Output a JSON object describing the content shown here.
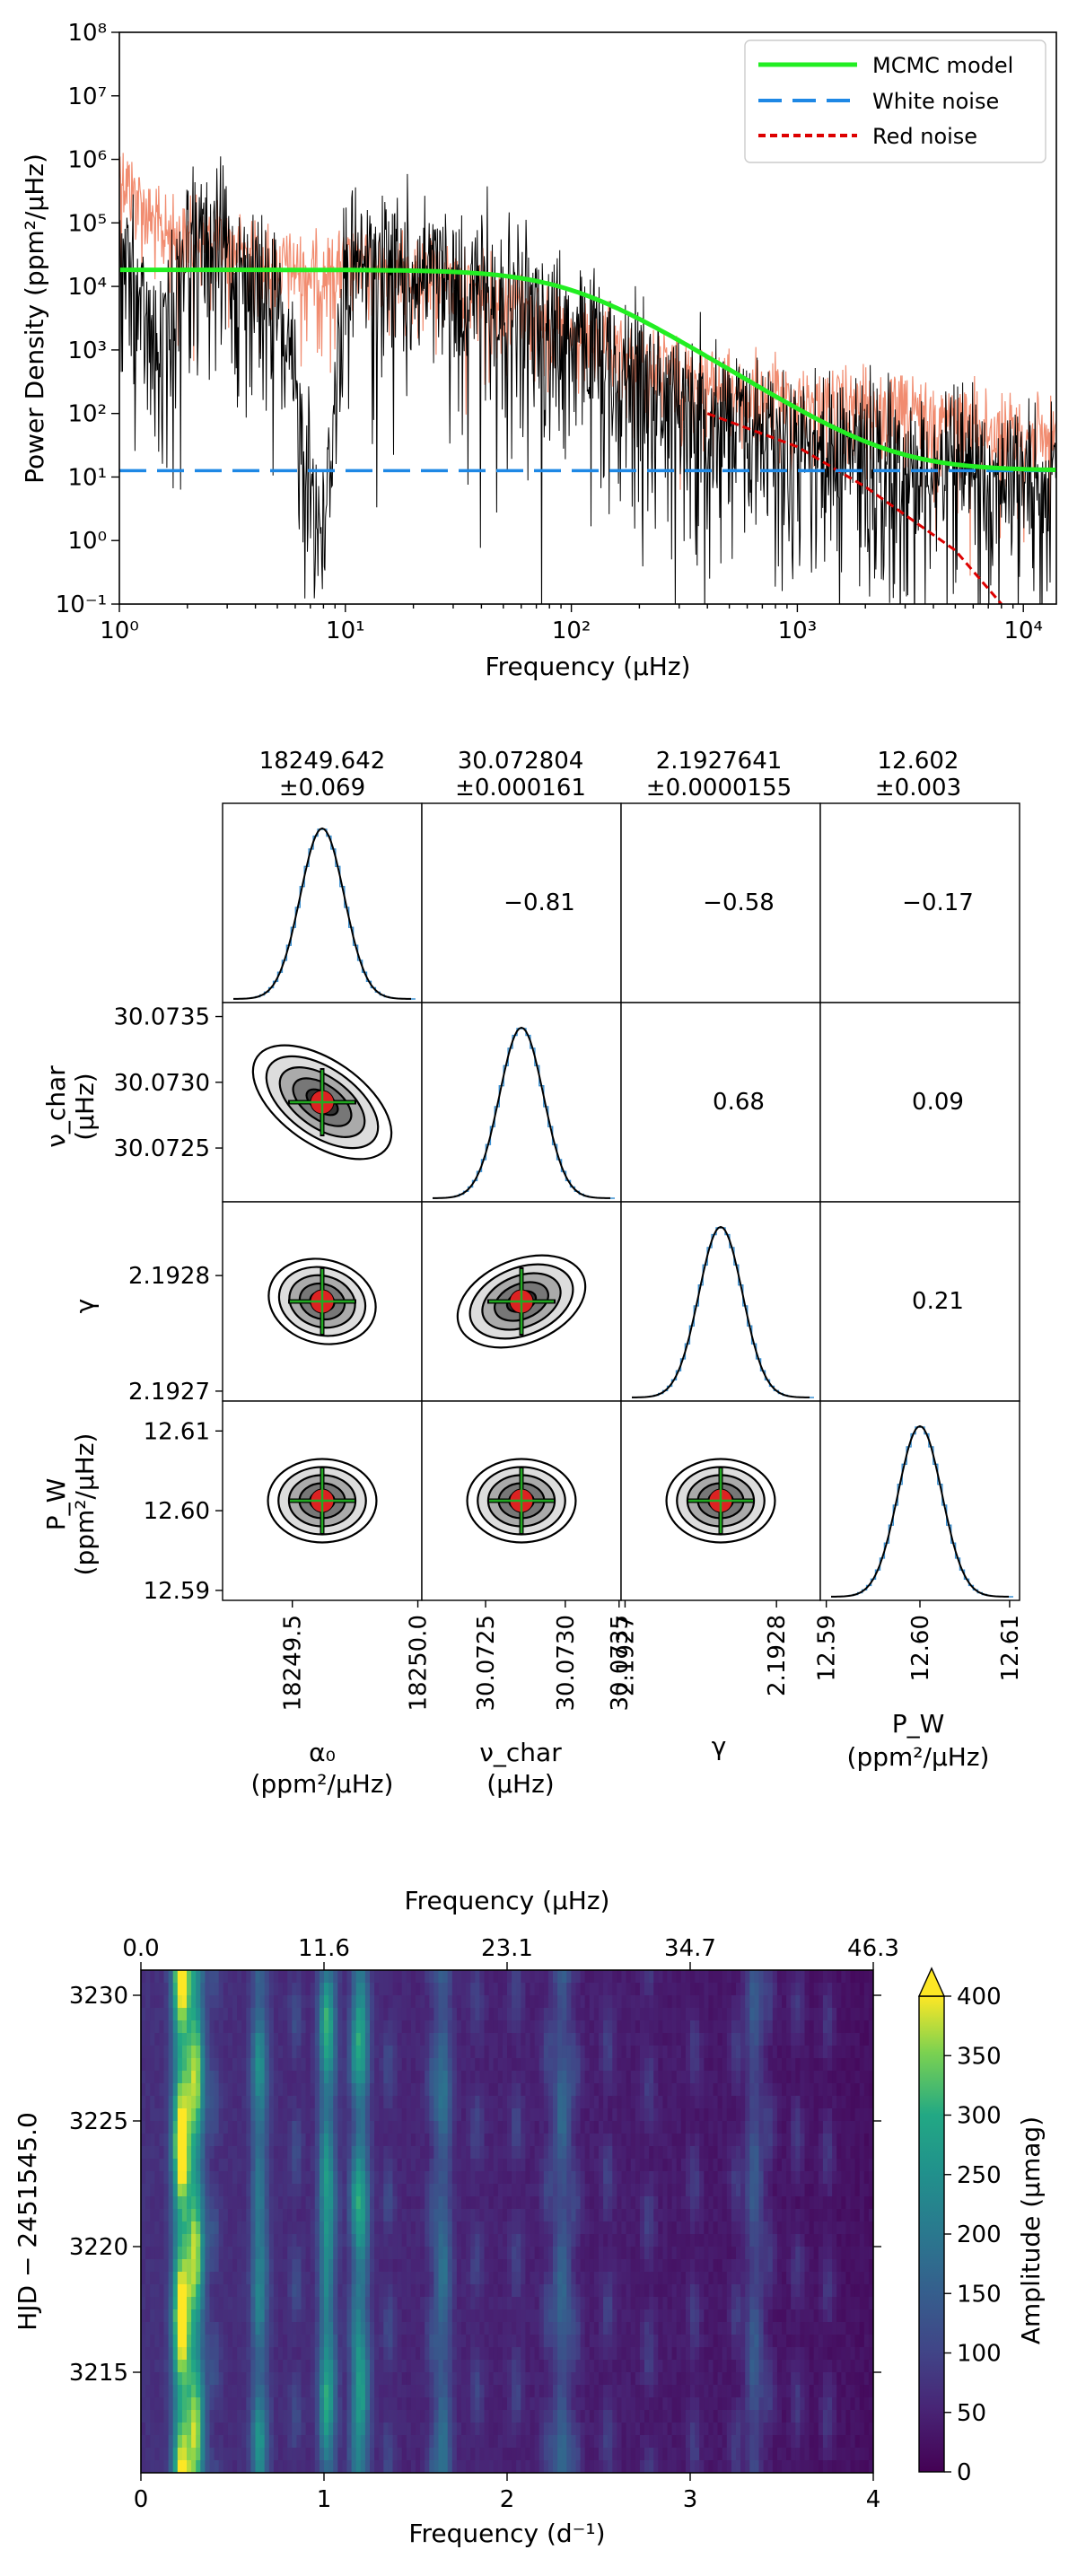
{
  "chart_data": [
    {
      "type": "line",
      "xlabel": "Frequency (μHz)",
      "ylabel": "Power Density (ppm²/μHz)",
      "xscale": "log",
      "yscale": "log",
      "xlim": [
        1,
        14000
      ],
      "ylim": [
        0.1,
        100000000
      ],
      "x_ticks": [
        1,
        10,
        100,
        1000,
        10000
      ],
      "x_tick_labels": [
        "10⁰",
        "10¹",
        "10²",
        "10³",
        "10⁴"
      ],
      "y_ticks": [
        0.1,
        1,
        10,
        100,
        1000,
        10000,
        100000,
        1000000,
        10000000,
        100000000
      ],
      "y_tick_labels": [
        "10⁻¹",
        "10⁰",
        "10¹",
        "10²",
        "10³",
        "10⁴",
        "10⁵",
        "10⁶",
        "10⁷",
        "10⁸"
      ],
      "legend_position": "top-right",
      "series": [
        {
          "name": "MCMC model",
          "color": "#22ee22",
          "style": "solid",
          "x": [
            1,
            10,
            30,
            60,
            100,
            200,
            400,
            700,
            1000,
            2000,
            5000,
            14000
          ],
          "values": [
            18250,
            18150,
            15500,
            10500,
            5800,
            1600,
            360,
            130,
            60,
            22,
            14,
            12.6
          ]
        },
        {
          "name": "White noise",
          "color": "#1e88e5",
          "style": "dashed",
          "x": [
            1,
            14000
          ],
          "values": [
            12.6,
            12.6
          ]
        },
        {
          "name": "Red noise",
          "color": "#dd0000",
          "style": "dotted",
          "x": [
            400,
            1000,
            2000,
            5000,
            8000
          ],
          "values": [
            100,
            30,
            7,
            0.7,
            0.1
          ]
        },
        {
          "name": "",
          "color": "#f08060",
          "style": "solid",
          "x": [
            1,
            1.5,
            2,
            3,
            5,
            8,
            10,
            20,
            50,
            100,
            200,
            500,
            1000,
            2000,
            5000,
            14000
          ],
          "values": [
            1000000,
            100000,
            80000,
            60000,
            30000,
            20000,
            30000,
            20000,
            10000,
            2000,
            800,
            300,
            200,
            150,
            100,
            50
          ]
        },
        {
          "name": "",
          "color": "#000000",
          "style": "solid",
          "x": [
            1,
            1.5,
            2,
            3,
            5,
            8,
            10,
            20,
            50,
            100,
            200,
            500,
            1000,
            2000,
            5000,
            14000
          ],
          "values": [
            80000,
            900,
            100000,
            50000,
            8000,
            2,
            40000,
            30000,
            10000,
            3000,
            600,
            150,
            60,
            40,
            20,
            15
          ]
        }
      ]
    },
    {
      "type": "scatter",
      "title": "",
      "params": [
        {
          "headline": "18249.642",
          "uncertainty": "±0.069",
          "label": "α₀",
          "unit": "(ppm²/μHz)",
          "ticks": [
            "18249.5",
            "18250.0"
          ]
        },
        {
          "headline": "30.072804",
          "uncertainty": "±0.000161",
          "label": "ν_char",
          "unit": "(μHz)",
          "ticks": [
            "30.0725",
            "30.0730",
            "30.0735"
          ]
        },
        {
          "headline": "2.1927641",
          "uncertainty": "±0.0000155",
          "label": "γ",
          "unit": "",
          "ticks": [
            "2.1927",
            "2.1928"
          ]
        },
        {
          "headline": "12.602",
          "uncertainty": "±0.003",
          "label": "P_W",
          "unit": "(ppm²/μHz)",
          "ticks": [
            "12.59",
            "12.60",
            "12.61"
          ]
        }
      ],
      "y_labels": [
        {
          "label": "ν_char",
          "unit": "(μHz)",
          "ticks": [
            "30.0735",
            "30.0730",
            "30.0725"
          ]
        },
        {
          "label": "γ",
          "unit": "",
          "ticks": [
            "2.1928",
            "2.1927"
          ]
        },
        {
          "label": "P_W",
          "unit": "(ppm²/μHz)",
          "ticks": [
            "12.61",
            "12.60",
            "12.59"
          ]
        }
      ],
      "correlations": [
        {
          "row": 0,
          "col": 1,
          "value": "−0.81"
        },
        {
          "row": 0,
          "col": 2,
          "value": "−0.58"
        },
        {
          "row": 0,
          "col": 3,
          "value": "−0.17"
        },
        {
          "row": 1,
          "col": 2,
          "value": "0.68"
        },
        {
          "row": 1,
          "col": 3,
          "value": "0.09"
        },
        {
          "row": 2,
          "col": 3,
          "value": "0.21"
        }
      ],
      "colors": {
        "contour": "#000000",
        "marker": "#dd2222",
        "crosshair": "#22aa22",
        "histogram": "#3a8fd0"
      }
    },
    {
      "type": "heatmap",
      "xlabel": "Frequency (d⁻¹)",
      "x2label": "Frequency (μHz)",
      "ylabel": "HJD − 2451545.0",
      "colorbar_label": "Amplitude (μmag)",
      "colormap": "viridis",
      "xlim": [
        0,
        4
      ],
      "ylim": [
        3211,
        3231
      ],
      "x_ticks": [
        "0",
        "1",
        "2",
        "3",
        "4"
      ],
      "x2_ticks": [
        "0.0",
        "11.6",
        "23.1",
        "34.7",
        "46.3"
      ],
      "y_ticks": [
        "3230",
        "3225",
        "3220",
        "3215"
      ],
      "colorbar_ticks": [
        "0",
        "50",
        "100",
        "150",
        "200",
        "250",
        "300",
        "350",
        "400"
      ],
      "clim": [
        0,
        400
      ],
      "ridges": [
        {
          "frequency": 0.22,
          "amplitude": 380
        },
        {
          "frequency": 0.3,
          "amplitude": 300
        },
        {
          "frequency": 1.02,
          "amplitude": 210
        },
        {
          "frequency": 1.2,
          "amplitude": 230
        },
        {
          "frequency": 0.65,
          "amplitude": 150
        },
        {
          "frequency": 1.65,
          "amplitude": 140
        },
        {
          "frequency": 2.3,
          "amplitude": 130
        },
        {
          "frequency": 3.35,
          "amplitude": 120
        }
      ]
    }
  ]
}
